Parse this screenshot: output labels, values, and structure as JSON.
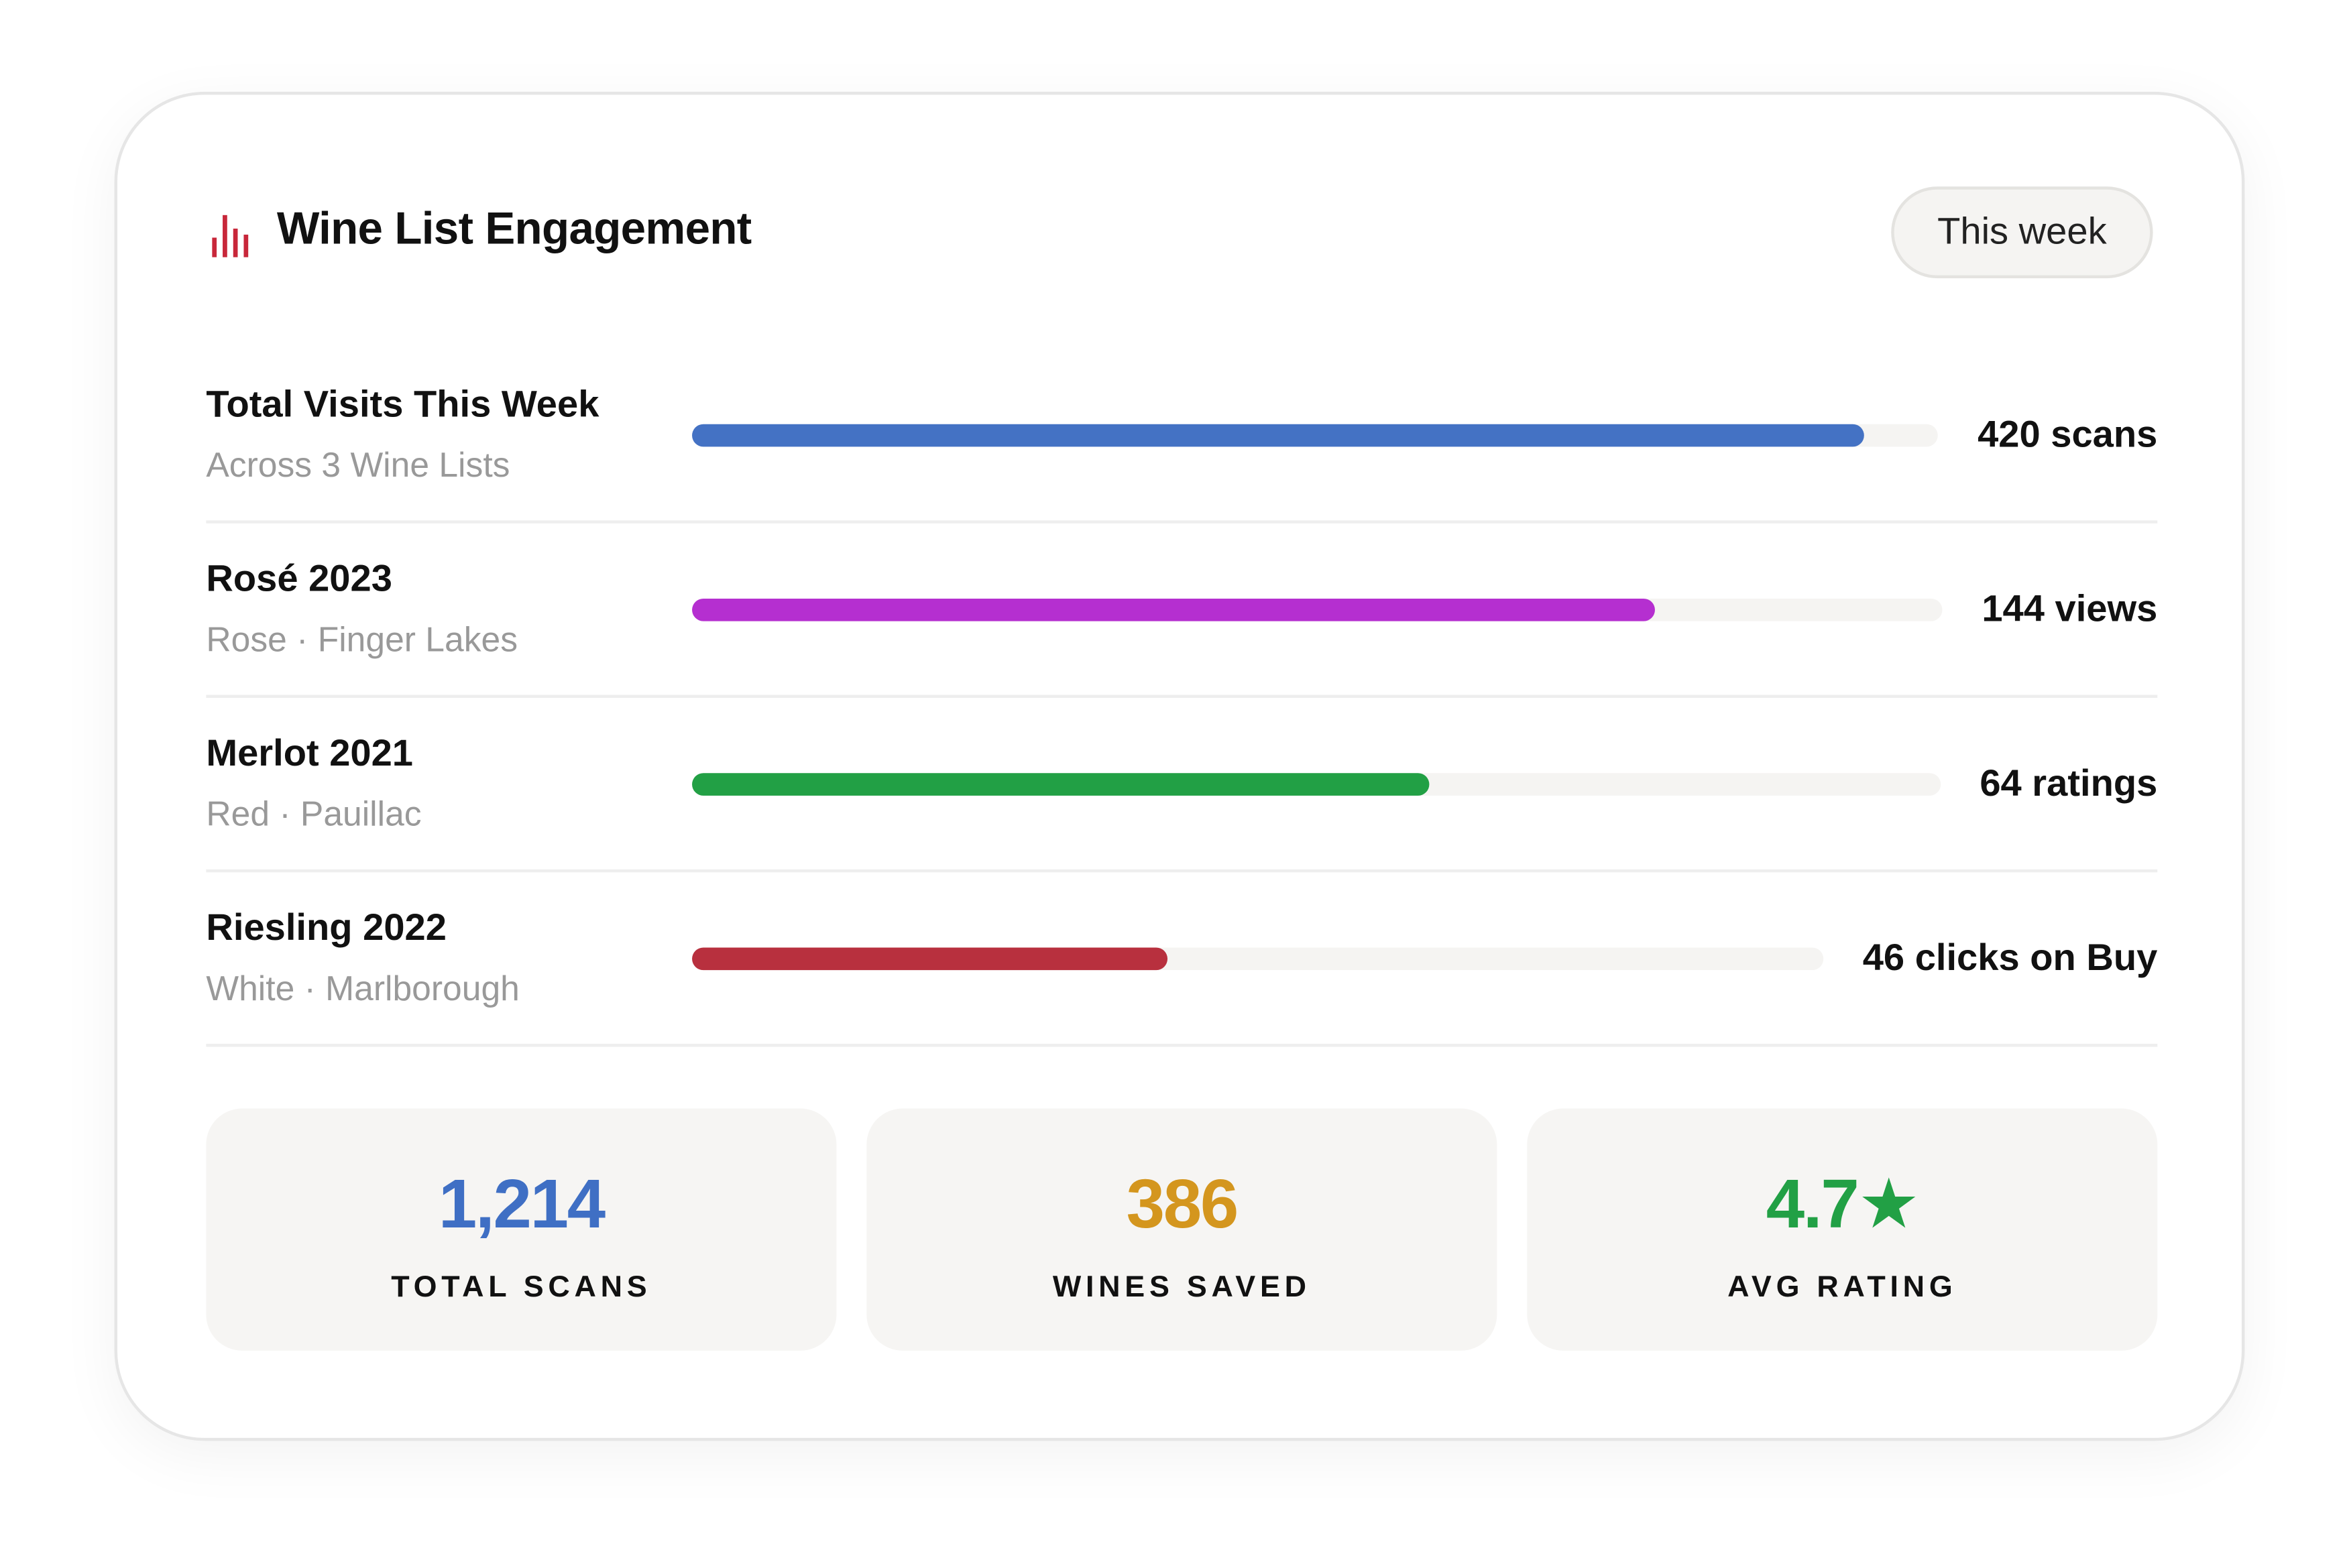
{
  "header": {
    "title": "Wine List Engagement",
    "range_button": "This week"
  },
  "rows": [
    {
      "name": "Total Visits This Week",
      "detail": "Across 3 Wine Lists",
      "value_label": "420 scans",
      "bar_percent": 94,
      "color": "#4472c4"
    },
    {
      "name": "Rosé 2023",
      "detail": "Rose · Finger Lakes",
      "value_label": "144 views",
      "bar_percent": 77,
      "color": "#b52fd0"
    },
    {
      "name": "Merlot 2021",
      "detail": "Red · Pauillac",
      "value_label": "64 ratings",
      "bar_percent": 59,
      "color": "#22a045"
    },
    {
      "name": "Riesling 2022",
      "detail": "White · Marlborough",
      "value_label": "46 clicks on Buy",
      "bar_percent": 42,
      "color": "#b8303e"
    }
  ],
  "stats": [
    {
      "value": "1,214",
      "label": "TOTAL SCANS",
      "color": "#3f6fc4"
    },
    {
      "value": "386",
      "label": "WINES SAVED",
      "color": "#d4961e"
    },
    {
      "value": "4.7★",
      "label": "AVG RATING",
      "color": "#22a045"
    }
  ]
}
